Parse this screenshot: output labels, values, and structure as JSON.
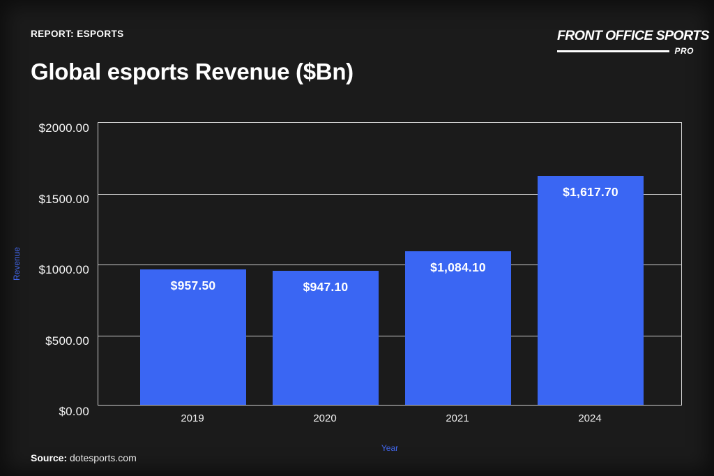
{
  "header": {
    "eyebrow": "REPORT: ESPORTS",
    "title": "Global esports Revenue ($Bn)",
    "brand": {
      "name": "FRONT OFFICE SPORTS",
      "sub": "PRO"
    }
  },
  "chart_data": {
    "type": "bar",
    "title": "Global esports Revenue ($Bn)",
    "categories": [
      "2019",
      "2020",
      "2021",
      "2024"
    ],
    "values": [
      957.5,
      947.1,
      1084.1,
      1617.7
    ],
    "bar_value_labels": [
      "$957.50",
      "$947.10",
      "$1,084.10",
      "$1,617.70"
    ],
    "xlabel": "Year",
    "ylabel": "Revenue",
    "ylim": [
      0,
      2000
    ],
    "ytick_values": [
      0,
      500,
      1000,
      1500,
      2000
    ],
    "ytick_labels": [
      "$0.00",
      "$500.00",
      "$1000.00",
      "$1500.00",
      "$2000.00"
    ],
    "grid": true,
    "legend": false,
    "colors": {
      "bar": "#3a66f3",
      "axis_title": "#4166eb",
      "grid": "#cfcfcf",
      "background": "#1b1b1b",
      "text": "#ffffff"
    }
  },
  "footer": {
    "source_label": "Source:",
    "source_value": "dotesports.com"
  }
}
